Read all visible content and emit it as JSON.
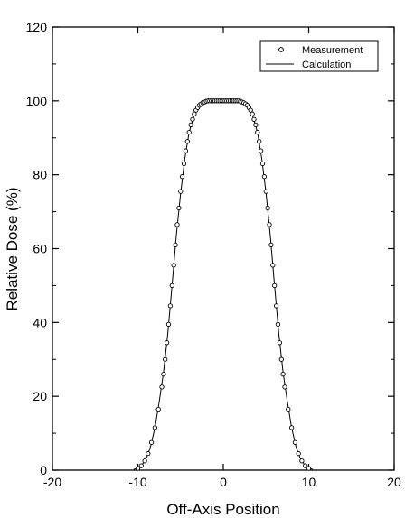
{
  "chart_data": {
    "type": "scatter",
    "xlabel": "Off-Axis Position",
    "ylabel": "Relative Dose (%)",
    "xlim": [
      -20,
      20
    ],
    "ylim": [
      0,
      120
    ],
    "x_ticks": [
      -20,
      -10,
      0,
      10,
      20
    ],
    "y_ticks": [
      0,
      20,
      40,
      60,
      80,
      100,
      120
    ],
    "grid": false,
    "legend_position": "top-right",
    "legend": [
      {
        "label": "Measurement",
        "marker": "circle"
      },
      {
        "label": "Calculation",
        "marker": "line"
      }
    ],
    "series": [
      {
        "name": "Measurement",
        "style": "scatter",
        "marker": "open-circle",
        "x": [
          -10.0,
          -9.6,
          -9.2,
          -8.8,
          -8.4,
          -8.0,
          -7.6,
          -7.2,
          -7.0,
          -6.8,
          -6.6,
          -6.4,
          -6.2,
          -6.0,
          -5.8,
          -5.6,
          -5.4,
          -5.2,
          -5.0,
          -4.8,
          -4.6,
          -4.4,
          -4.2,
          -4.0,
          -3.8,
          -3.6,
          -3.4,
          -3.2,
          -3.0,
          -2.8,
          -2.6,
          -2.4,
          -2.2,
          -2.0,
          -1.8,
          -1.6,
          -1.4,
          -1.2,
          -1.0,
          -0.8,
          -0.6,
          -0.4,
          -0.2,
          0.0,
          0.2,
          0.4,
          0.6,
          0.8,
          1.0,
          1.2,
          1.4,
          1.6,
          1.8,
          2.0,
          2.2,
          2.4,
          2.6,
          2.8,
          3.0,
          3.2,
          3.4,
          3.6,
          3.8,
          4.0,
          4.2,
          4.4,
          4.6,
          4.8,
          5.0,
          5.2,
          5.4,
          5.6,
          5.8,
          6.0,
          6.2,
          6.4,
          6.6,
          6.8,
          7.0,
          7.2,
          7.6,
          8.0,
          8.4,
          8.8,
          9.2,
          9.6,
          10.0
        ],
        "y": [
          0.5,
          1.2,
          2.5,
          4.5,
          7.5,
          11.5,
          16.5,
          22.5,
          26.0,
          30.0,
          34.5,
          39.5,
          44.5,
          50.0,
          55.5,
          61.0,
          66.5,
          71.0,
          75.5,
          79.5,
          83.0,
          86.5,
          89.0,
          91.5,
          93.5,
          95.0,
          96.5,
          97.5,
          98.2,
          98.8,
          99.2,
          99.5,
          99.7,
          99.9,
          100.0,
          100.0,
          100.0,
          100.0,
          100.0,
          100.0,
          100.0,
          100.0,
          100.0,
          100.0,
          100.0,
          100.0,
          100.0,
          100.0,
          100.0,
          100.0,
          100.0,
          100.0,
          100.0,
          99.9,
          99.7,
          99.5,
          99.2,
          98.8,
          98.2,
          97.5,
          96.5,
          95.0,
          93.5,
          91.5,
          89.0,
          86.5,
          83.0,
          79.5,
          75.5,
          71.0,
          66.5,
          61.0,
          55.5,
          50.0,
          44.5,
          39.5,
          34.5,
          30.0,
          26.0,
          22.5,
          16.5,
          11.5,
          7.5,
          4.5,
          2.5,
          1.2,
          0.5
        ]
      },
      {
        "name": "Calculation",
        "style": "line",
        "x": [
          -10.5,
          -10.0,
          -9.5,
          -9.0,
          -8.5,
          -8.0,
          -7.5,
          -7.0,
          -6.5,
          -6.0,
          -5.5,
          -5.0,
          -4.5,
          -4.0,
          -3.5,
          -3.0,
          -2.5,
          -2.0,
          -1.5,
          -1.0,
          -0.5,
          0.0,
          0.5,
          1.0,
          1.5,
          2.0,
          2.5,
          3.0,
          3.5,
          4.0,
          4.5,
          5.0,
          5.5,
          6.0,
          6.5,
          7.0,
          7.5,
          8.0,
          8.5,
          9.0,
          9.5,
          10.0,
          10.5
        ],
        "y": [
          0.2,
          0.6,
          1.5,
          3.2,
          6.5,
          11.5,
          18.5,
          26.5,
          37.0,
          50.0,
          63.5,
          75.0,
          84.5,
          91.5,
          95.5,
          98.0,
          99.3,
          99.8,
          100.0,
          100.0,
          100.0,
          100.0,
          100.0,
          100.0,
          100.0,
          99.8,
          99.3,
          98.0,
          95.5,
          91.5,
          84.5,
          75.0,
          63.5,
          50.0,
          37.0,
          26.5,
          18.5,
          11.5,
          6.5,
          3.2,
          1.5,
          0.6,
          0.2
        ]
      }
    ]
  }
}
